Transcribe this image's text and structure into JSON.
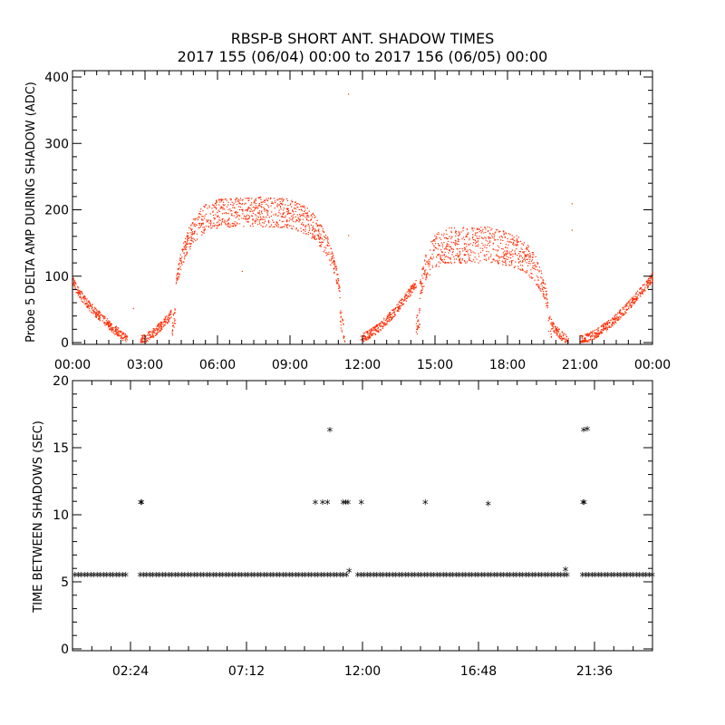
{
  "title_line1": "RBSP-B SHORT ANT. SHADOW TIMES",
  "title_line2": "2017 155 (06/04) 00:00 to 2017 156 (06/05) 00:00",
  "colors": {
    "amp_points": "#ff2a00",
    "shadow_points": "#000000"
  },
  "chart_data": [
    {
      "type": "scatter",
      "ylabel": "Probe 5 DELTA AMP DURING SHADOW (ADC)",
      "xlim_hours": [
        0,
        24
      ],
      "ylim": [
        0,
        400
      ],
      "y_ticks": [
        "0",
        "100",
        "200",
        "300",
        "400"
      ],
      "x_ticks": [
        "00:00",
        "03:00",
        "06:00",
        "09:00",
        "12:00",
        "15:00",
        "18:00",
        "21:00",
        "00:00"
      ],
      "grid": false,
      "series": [
        {
          "color": "#ff2a00",
          "segments": [
            {
              "x_start": 0.0,
              "x_end": 2.25,
              "y_start": 95,
              "y_end": 5
            },
            {
              "x_start": 2.8,
              "x_end": 4.1,
              "y_start": 5,
              "y_end": 45
            },
            {
              "x_start": 4.1,
              "x_end": 11.2,
              "y_peak": 220,
              "y_band_low": 175,
              "peak_at": 7.3
            },
            {
              "x_start": 11.2,
              "x_end": 11.25,
              "y_start": 5,
              "y_end": 2
            },
            {
              "x_start": 11.9,
              "x_end": 14.2,
              "y_start": 8,
              "y_end": 90
            },
            {
              "x_start": 14.2,
              "x_end": 19.8,
              "y_peak": 175,
              "y_band_low": 120,
              "peak_at": 16.2
            },
            {
              "x_start": 19.8,
              "x_end": 20.5,
              "y_start": 30,
              "y_end": 3
            },
            {
              "x_start": 21.0,
              "x_end": 24.0,
              "y_start": 5,
              "y_end": 100
            }
          ],
          "outliers": [
            {
              "x": 11.4,
              "y": 375
            },
            {
              "x": 11.4,
              "y": 162
            },
            {
              "x": 7.0,
              "y": 108
            },
            {
              "x": 20.65,
              "y": 210
            },
            {
              "x": 20.65,
              "y": 170
            },
            {
              "x": 2.5,
              "y": 52
            }
          ]
        }
      ]
    },
    {
      "type": "scatter",
      "ylabel": "TIME BETWEEN SHADOWS (SEC)",
      "xlim_hours": [
        0,
        24
      ],
      "ylim": [
        0,
        20
      ],
      "y_ticks": [
        "0",
        "5",
        "10",
        "15",
        "20"
      ],
      "x_ticks": [
        "02:24",
        "07:12",
        "12:00",
        "16:48",
        "21:36"
      ],
      "x_tick_hours": [
        2.4,
        7.2,
        12.0,
        16.8,
        21.6
      ],
      "grid": false,
      "series": [
        {
          "marker": "*",
          "color": "#000000",
          "baseline_value": 5.4,
          "baseline_ranges": [
            [
              0.1,
              2.3
            ],
            [
              2.8,
              11.35
            ],
            [
              11.8,
              20.5
            ],
            [
              21.1,
              24.0
            ]
          ],
          "points": [
            {
              "x": 2.82,
              "y": 10.8
            },
            {
              "x": 2.86,
              "y": 10.8
            },
            {
              "x": 10.05,
              "y": 10.8
            },
            {
              "x": 10.35,
              "y": 10.8
            },
            {
              "x": 10.55,
              "y": 10.8
            },
            {
              "x": 10.65,
              "y": 16.2
            },
            {
              "x": 11.2,
              "y": 10.8
            },
            {
              "x": 11.3,
              "y": 10.8
            },
            {
              "x": 11.4,
              "y": 10.8
            },
            {
              "x": 11.45,
              "y": 5.7
            },
            {
              "x": 11.95,
              "y": 10.8
            },
            {
              "x": 14.6,
              "y": 10.8
            },
            {
              "x": 17.2,
              "y": 10.7
            },
            {
              "x": 20.4,
              "y": 5.8
            },
            {
              "x": 21.12,
              "y": 10.8
            },
            {
              "x": 21.18,
              "y": 10.8
            },
            {
              "x": 21.15,
              "y": 16.2
            },
            {
              "x": 21.3,
              "y": 16.3
            }
          ]
        }
      ]
    }
  ]
}
